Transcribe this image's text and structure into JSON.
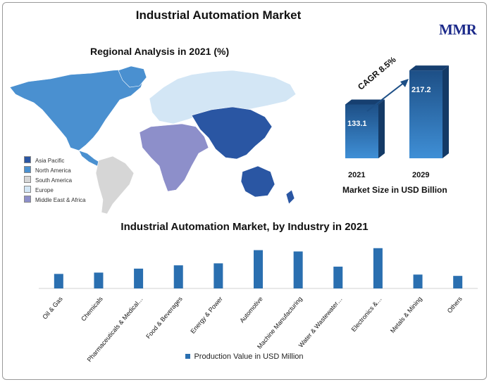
{
  "title": "Industrial Automation Market",
  "logo": {
    "text": "MMR"
  },
  "region_chart": {
    "subtitle": "Regional Analysis in 2021 (%)",
    "legend": [
      {
        "label": "Asia Pacific",
        "color": "#2a56a3"
      },
      {
        "label": "North America",
        "color": "#4a90d0"
      },
      {
        "label": "South America",
        "color": "#d6d6d6"
      },
      {
        "label": "Europe",
        "color": "#d3e6f5"
      },
      {
        "label": "Middle East & Africa",
        "color": "#8d8fca"
      }
    ]
  },
  "market_chart": {
    "cagr_label": "CAGR 8.5%",
    "caption": "Market Size in USD Billion"
  },
  "industry_chart": {
    "subtitle": "Industrial Automation Market, by Industry in 2021",
    "legend_label": "Production Value in USD Million"
  },
  "chart_data": [
    {
      "type": "bar",
      "categories": [
        "2021",
        "2029"
      ],
      "values": [
        133.1,
        217.2
      ],
      "title": "",
      "xlabel": "",
      "ylabel": "Market Size in USD Billion",
      "ylim": [
        0,
        240
      ]
    },
    {
      "type": "bar",
      "title": "Industrial Automation Market, by Industry in 2021",
      "categories": [
        "Oil & Gas",
        "Chemicals",
        "Pharmaceuticals & Medical…",
        "Food & Beverages",
        "Energy & Power",
        "Automotive",
        "Machine Manufacturing",
        "Water & Wastewater…",
        "Electronics &…",
        "Metals & Mining",
        "Others"
      ],
      "series": [
        {
          "name": "Production Value in USD Million",
          "values": [
            22,
            24,
            30,
            35,
            38,
            58,
            56,
            33,
            61,
            21,
            19
          ]
        }
      ],
      "ylim": [
        0,
        65
      ],
      "grid": false,
      "legend": "bottom"
    }
  ],
  "colors": {
    "bar_dark": "#1d4f86",
    "bar_light": "#3f8fd6",
    "ind_bar": "#2a6fb0"
  }
}
